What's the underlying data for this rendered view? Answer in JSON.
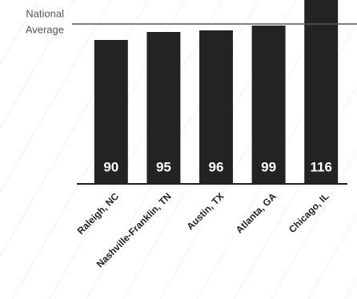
{
  "chart_data": {
    "type": "bar",
    "categories": [
      "Raleigh, NC",
      "Nashville-Franklin, TN",
      "Austin, TX",
      "Atlanta, GA",
      "Chicago, IL"
    ],
    "values": [
      90,
      95,
      96,
      99,
      116
    ],
    "color": "#232323",
    "ylim": [
      0,
      115
    ],
    "reference_line": {
      "value": 100,
      "label_lines": [
        "National",
        "Average"
      ],
      "color": "#555555"
    }
  }
}
